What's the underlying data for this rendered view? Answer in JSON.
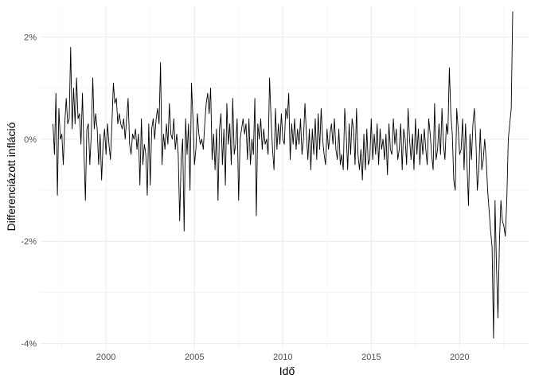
{
  "chart_data": {
    "type": "line",
    "title": "",
    "xlabel": "Idő",
    "ylabel": "Differenciázott infláció",
    "xlim": [
      1996.3,
      2023.9
    ],
    "ylim": [
      -4.1,
      2.6
    ],
    "x_ticks": [
      2000,
      2005,
      2010,
      2015,
      2020
    ],
    "x_tick_labels": [
      "2000",
      "2005",
      "2010",
      "2015",
      "2020"
    ],
    "y_ticks": [
      -4,
      -2,
      0,
      2
    ],
    "y_tick_labels": [
      "-4%",
      "-2%",
      "0%",
      "2%"
    ],
    "grid": true,
    "legend": "none",
    "series": [
      {
        "color": "#000000",
        "x_start": 1997.0,
        "x_step": 0.08333,
        "values": [
          0.3,
          -0.3,
          0.9,
          -1.1,
          0.6,
          0.0,
          0.1,
          -0.5,
          0.3,
          0.8,
          0.3,
          0.4,
          1.8,
          0.2,
          1.0,
          0.3,
          1.2,
          0.4,
          0.5,
          -0.1,
          0.9,
          -0.2,
          -1.2,
          0.2,
          0.3,
          -0.5,
          0.1,
          1.2,
          0.2,
          0.5,
          0.2,
          -0.5,
          0.1,
          -0.8,
          -0.1,
          0.2,
          -0.3,
          0.3,
          -0.1,
          -0.4,
          0.3,
          1.1,
          0.7,
          0.8,
          0.3,
          0.5,
          0.3,
          0.2,
          0.4,
          0.0,
          0.4,
          0.8,
          -0.1,
          -0.3,
          0.1,
          0.0,
          0.2,
          -0.2,
          0.1,
          -0.9,
          0.4,
          -0.5,
          -0.1,
          -0.3,
          -1.1,
          0.3,
          -0.9,
          0.2,
          0.4,
          0.0,
          0.4,
          0.6,
          0.3,
          1.5,
          -0.5,
          0.1,
          -0.2,
          0.3,
          -0.1,
          0.7,
          0.1,
          0.0,
          0.4,
          -0.2,
          0.1,
          -0.3,
          -1.6,
          -0.4,
          0.0,
          -1.8,
          0.4,
          -0.3,
          0.3,
          -1.0,
          1.1,
          0.4,
          -0.5,
          -0.2,
          0.5,
          0.1,
          -0.1,
          0.0,
          -0.2,
          0.3,
          0.7,
          0.9,
          0.5,
          1.0,
          -0.4,
          0.1,
          -0.6,
          0.2,
          -1.2,
          0.2,
          0.5,
          -0.5,
          0.2,
          -0.9,
          0.7,
          -0.1,
          0.3,
          -0.5,
          0.8,
          -0.3,
          -0.1,
          0.4,
          -1.2,
          0.0,
          0.2,
          0.4,
          0.1,
          0.3,
          -0.4,
          0.4,
          -0.5,
          0.0,
          -0.3,
          0.8,
          -1.5,
          0.3,
          0.0,
          0.4,
          -0.2,
          0.2,
          -0.1,
          0.0,
          -0.3,
          1.2,
          0.4,
          -0.2,
          -0.6,
          0.6,
          -0.2,
          0.3,
          -0.1,
          0.5,
          0.0,
          -0.1,
          0.6,
          0.4,
          0.9,
          -0.4,
          0.3,
          -0.1,
          0.4,
          -0.2,
          0.2,
          -0.1,
          0.4,
          -0.3,
          0.0,
          0.7,
          0.1,
          -0.4,
          0.2,
          -0.6,
          0.2,
          -0.3,
          0.4,
          -0.4,
          0.5,
          -0.2,
          0.6,
          0.0,
          -0.3,
          -0.5,
          0.2,
          -0.2,
          0.1,
          0.3,
          -0.1,
          0.4,
          -0.2,
          -0.4,
          0.2,
          -0.5,
          -0.3,
          -0.6,
          0.6,
          0.1,
          -0.6,
          0.3,
          -0.3,
          0.4,
          0.2,
          -0.5,
          0.6,
          -0.3,
          -0.6,
          -0.2,
          -0.8,
          0.1,
          -0.6,
          0.2,
          -0.5,
          -0.4,
          0.4,
          -0.4,
          0.1,
          -0.3,
          0.3,
          -0.5,
          0.2,
          -0.2,
          0.0,
          -0.4,
          0.1,
          -0.7,
          0.3,
          -0.2,
          -0.3,
          0.4,
          -0.1,
          0.2,
          -0.4,
          -0.2,
          0.3,
          -0.6,
          0.2,
          0.0,
          -0.5,
          0.6,
          0.0,
          -0.4,
          0.1,
          -0.6,
          0.4,
          -0.3,
          0.2,
          -0.5,
          0.1,
          -0.3,
          0.2,
          -0.2,
          -0.5,
          0.4,
          0.1,
          -0.3,
          -0.6,
          0.7,
          -0.4,
          -0.2,
          0.3,
          -0.3,
          0.6,
          -0.1,
          -0.4,
          0.3,
          0.1,
          1.4,
          0.5,
          0.1,
          -0.8,
          -1.0,
          0.6,
          0.2,
          -0.3,
          -0.2,
          0.4,
          -0.6,
          0.3,
          -0.5,
          -1.3,
          0.1,
          -0.4,
          0.3,
          0.6,
          0.0,
          -1.0,
          -0.6,
          0.2,
          -0.6,
          -0.4,
          0.0,
          -0.4,
          -1.0,
          -1.4,
          -1.8,
          -2.1,
          -3.9,
          -1.2,
          -2.5,
          -3.5,
          -2.0,
          -1.2,
          -1.6,
          -1.7,
          -1.9,
          -1.2,
          0.0,
          0.3,
          0.6,
          2.5
        ]
      }
    ]
  }
}
